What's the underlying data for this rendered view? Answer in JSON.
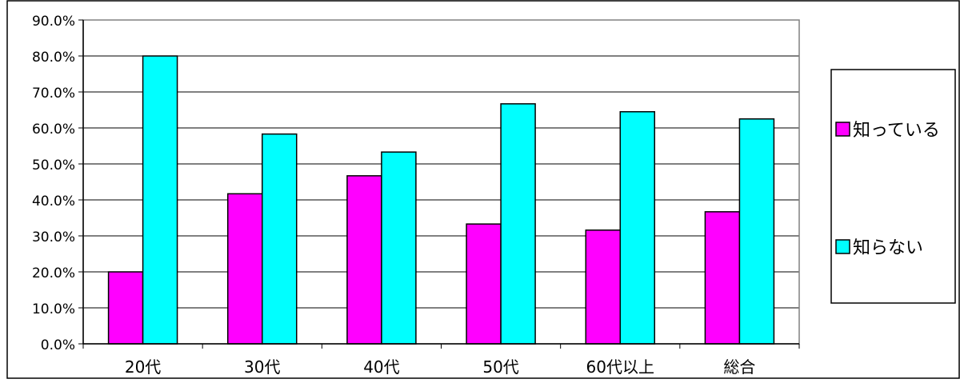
{
  "chart_data": {
    "type": "bar",
    "categories": [
      "20代",
      "30代",
      "40代",
      "50代",
      "60代以上",
      "総合"
    ],
    "series": [
      {
        "name": "知っている",
        "color": "#ff00ff",
        "values": [
          20.0,
          41.7,
          46.7,
          33.3,
          31.6,
          36.7
        ]
      },
      {
        "name": "知らない",
        "color": "#00ffff",
        "values": [
          80.0,
          58.3,
          53.3,
          66.7,
          64.5,
          62.5
        ]
      }
    ],
    "title": "",
    "xlabel": "",
    "ylabel": "",
    "ylim": [
      0,
      90
    ],
    "yticks": [
      "0.0%",
      "10.0%",
      "20.0%",
      "30.0%",
      "40.0%",
      "50.0%",
      "60.0%",
      "70.0%",
      "80.0%",
      "90.0%"
    ],
    "grid": true,
    "legend_position": "right"
  }
}
